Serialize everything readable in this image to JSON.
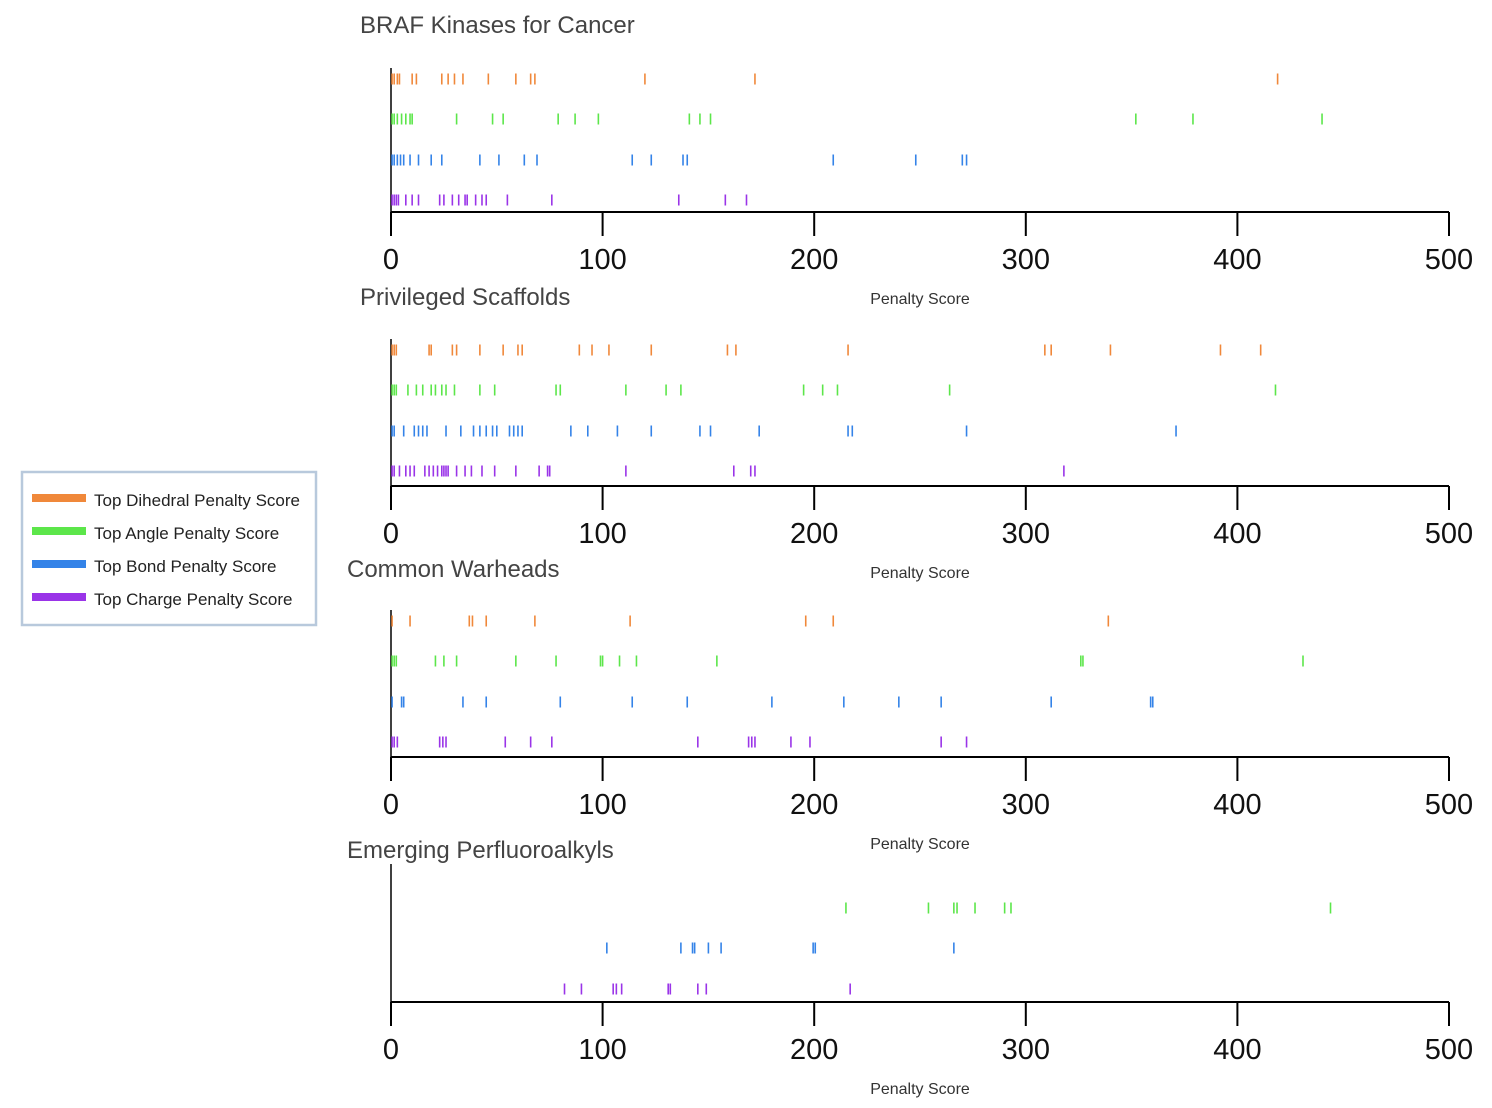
{
  "chart_data": [
    {
      "type": "strip",
      "title": "BRAF Kinases for Cancer",
      "xlabel": "Penalty Score",
      "xlim": [
        0,
        500
      ],
      "xticks": [
        "0",
        "100",
        "200",
        "300",
        "400",
        "500"
      ],
      "series": [
        {
          "name": "Top Dihedral Penalty Score",
          "color": "#f0883a",
          "values": [
            0.5,
            1.5,
            3,
            4,
            10,
            12,
            24,
            27,
            30,
            34,
            46,
            59,
            66,
            68,
            120,
            172,
            419
          ]
        },
        {
          "name": "Top Angle Penalty Score",
          "color": "#5ce64a",
          "values": [
            0.5,
            1.5,
            3,
            5,
            7,
            9,
            10,
            31,
            48,
            53,
            79,
            87,
            98,
            141,
            146,
            151,
            352,
            379,
            440
          ]
        },
        {
          "name": "Top Bond Penalty Score",
          "color": "#3483e8",
          "values": [
            0.5,
            1.5,
            3,
            4.5,
            6,
            9,
            13,
            19,
            24,
            42,
            51,
            63,
            69,
            114,
            123,
            138,
            140,
            209,
            248,
            270,
            272
          ]
        },
        {
          "name": "Top Charge Penalty Score",
          "color": "#9a34e8",
          "values": [
            0.5,
            1.5,
            2.5,
            3.5,
            7,
            10,
            13,
            23,
            25,
            29,
            32,
            35,
            36,
            40,
            43,
            45,
            55,
            76,
            136,
            158,
            168
          ]
        }
      ]
    },
    {
      "type": "strip",
      "title": "Privileged Scaffolds",
      "xlabel": "Penalty Score",
      "xlim": [
        0,
        500
      ],
      "xticks": [
        "0",
        "100",
        "200",
        "300",
        "400",
        "500"
      ],
      "series": [
        {
          "name": "Top Dihedral Penalty Score",
          "color": "#f0883a",
          "values": [
            0.5,
            1.5,
            2.5,
            18,
            19,
            29,
            31,
            42,
            53,
            60,
            62,
            89,
            95,
            103,
            123,
            159,
            163,
            216,
            309,
            312,
            340,
            392,
            411
          ]
        },
        {
          "name": "Top Angle Penalty Score",
          "color": "#5ce64a",
          "values": [
            0.5,
            1.5,
            2.5,
            8,
            12,
            15,
            19,
            21,
            24,
            26,
            30,
            42,
            49,
            78,
            80,
            111,
            130,
            137,
            195,
            204,
            211,
            264,
            418
          ]
        },
        {
          "name": "Top Bond Penalty Score",
          "color": "#3483e8",
          "values": [
            0.5,
            1.5,
            6,
            11,
            13,
            15,
            17,
            26,
            33,
            39,
            42,
            45,
            48,
            50,
            56,
            58,
            60,
            62,
            85,
            93,
            107,
            123,
            146,
            151,
            174,
            216,
            218,
            272,
            371
          ]
        },
        {
          "name": "Top Charge Penalty Score",
          "color": "#9a34e8",
          "values": [
            0.5,
            1.5,
            4,
            7,
            9,
            11,
            16,
            18,
            20,
            22,
            24,
            25,
            26,
            27,
            31,
            35,
            38,
            43,
            49,
            59,
            70,
            74,
            75,
            111,
            162,
            170,
            172,
            318
          ]
        }
      ]
    },
    {
      "type": "strip",
      "title": "Common Warheads",
      "xlabel": "Penalty Score",
      "xlim": [
        0,
        500
      ],
      "xticks": [
        "0",
        "100",
        "200",
        "300",
        "400",
        "500"
      ],
      "series": [
        {
          "name": "Top Dihedral Penalty Score",
          "color": "#f0883a",
          "values": [
            0.5,
            9,
            37,
            38.5,
            45,
            68,
            113,
            196,
            209,
            339
          ]
        },
        {
          "name": "Top Angle Penalty Score",
          "color": "#5ce64a",
          "values": [
            0.5,
            1.5,
            2.5,
            21,
            25,
            31,
            59,
            78,
            99,
            100,
            108,
            116,
            154,
            326,
            327,
            431
          ]
        },
        {
          "name": "Top Bond Penalty Score",
          "color": "#3483e8",
          "values": [
            0.5,
            5,
            6,
            34,
            45,
            80,
            114,
            140,
            180,
            214,
            240,
            260,
            312,
            359,
            360
          ]
        },
        {
          "name": "Top Charge Penalty Score",
          "color": "#9a34e8",
          "values": [
            0.5,
            1.5,
            3,
            23,
            24.5,
            26,
            54,
            66,
            76,
            145,
            169,
            170.5,
            172,
            189,
            198,
            260,
            272
          ]
        }
      ]
    },
    {
      "type": "strip",
      "title": "Emerging Perfluoroalkyls",
      "xlabel": "Penalty Score",
      "xlim": [
        0,
        500
      ],
      "xticks": [
        "0",
        "100",
        "200",
        "300",
        "400",
        "500"
      ],
      "series": [
        {
          "name": "Top Dihedral Penalty Score",
          "color": "#f0883a",
          "values": []
        },
        {
          "name": "Top Angle Penalty Score",
          "color": "#5ce64a",
          "values": [
            215,
            254,
            266,
            267.5,
            276,
            290,
            293,
            444
          ]
        },
        {
          "name": "Top Bond Penalty Score",
          "color": "#3483e8",
          "values": [
            102,
            137,
            142.5,
            143.5,
            150,
            156,
            199.5,
            200.5,
            266
          ]
        },
        {
          "name": "Top Charge Penalty Score",
          "color": "#9a34e8",
          "values": [
            82,
            90,
            105,
            106.5,
            109,
            131,
            132,
            145,
            149,
            217
          ]
        }
      ]
    }
  ],
  "legend": {
    "items": [
      {
        "label": "Top Dihedral Penalty Score",
        "color": "#f0883a"
      },
      {
        "label": "Top Angle Penalty Score",
        "color": "#5ce64a"
      },
      {
        "label": "Top Bond Penalty Score",
        "color": "#3483e8"
      },
      {
        "label": "Top Charge Penalty Score",
        "color": "#9a34e8"
      }
    ],
    "border_color": "#b8c9dc",
    "placement": "left"
  }
}
